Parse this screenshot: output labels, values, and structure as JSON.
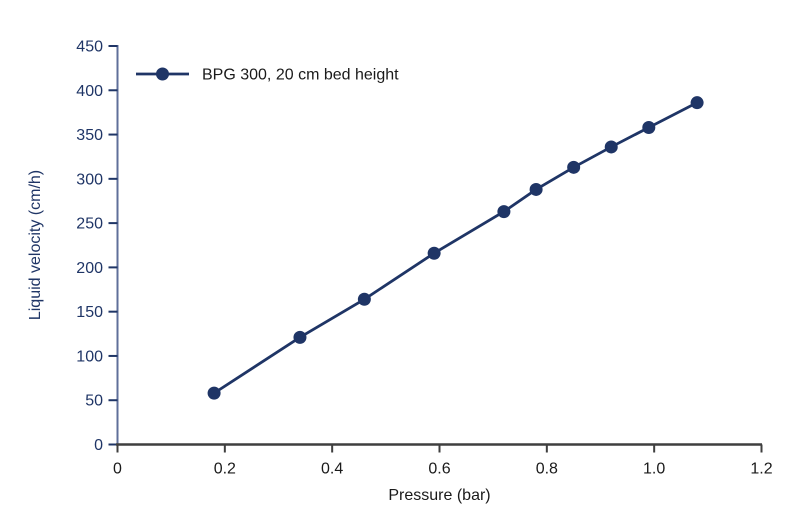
{
  "chart_data": {
    "type": "line",
    "title": "",
    "xlabel": "Pressure (bar)",
    "ylabel": "Liquid velocity (cm/h)",
    "xlim": [
      0,
      1.2
    ],
    "ylim": [
      0,
      450
    ],
    "x_ticks": [
      0,
      0.2,
      0.4,
      0.6,
      0.8,
      1.0,
      1.2
    ],
    "x_tick_labels": [
      "0",
      "0.2",
      "0.4",
      "0.6",
      "0.8",
      "1.0",
      "1.2"
    ],
    "y_ticks": [
      0,
      50,
      100,
      150,
      200,
      250,
      300,
      350,
      400,
      450
    ],
    "y_tick_labels": [
      "0",
      "50",
      "100",
      "150",
      "200",
      "250",
      "300",
      "350",
      "400",
      "450"
    ],
    "grid": false,
    "legend_position": "top-left-inside",
    "series": [
      {
        "name": "BPG 300, 20 cm bed height",
        "marker": "circle",
        "x": [
          0.18,
          0.34,
          0.46,
          0.59,
          0.72,
          0.78,
          0.85,
          0.92,
          0.99,
          1.08
        ],
        "y": [
          58,
          121,
          164,
          216,
          263,
          288,
          313,
          336,
          358,
          386
        ]
      }
    ],
    "colors": {
      "series_line": "#1f3566",
      "series_marker": "#1f3566",
      "y_axis_line": "#5f6f9a",
      "y_tick_mark": "#1f3566",
      "y_text": "#1f3566",
      "x_axis_line": "#3f3f3f",
      "x_tick_mark": "#3f3f3f",
      "x_text": "#1a1a1a",
      "legend_text": "#1a1a1a",
      "background": "#ffffff"
    }
  }
}
